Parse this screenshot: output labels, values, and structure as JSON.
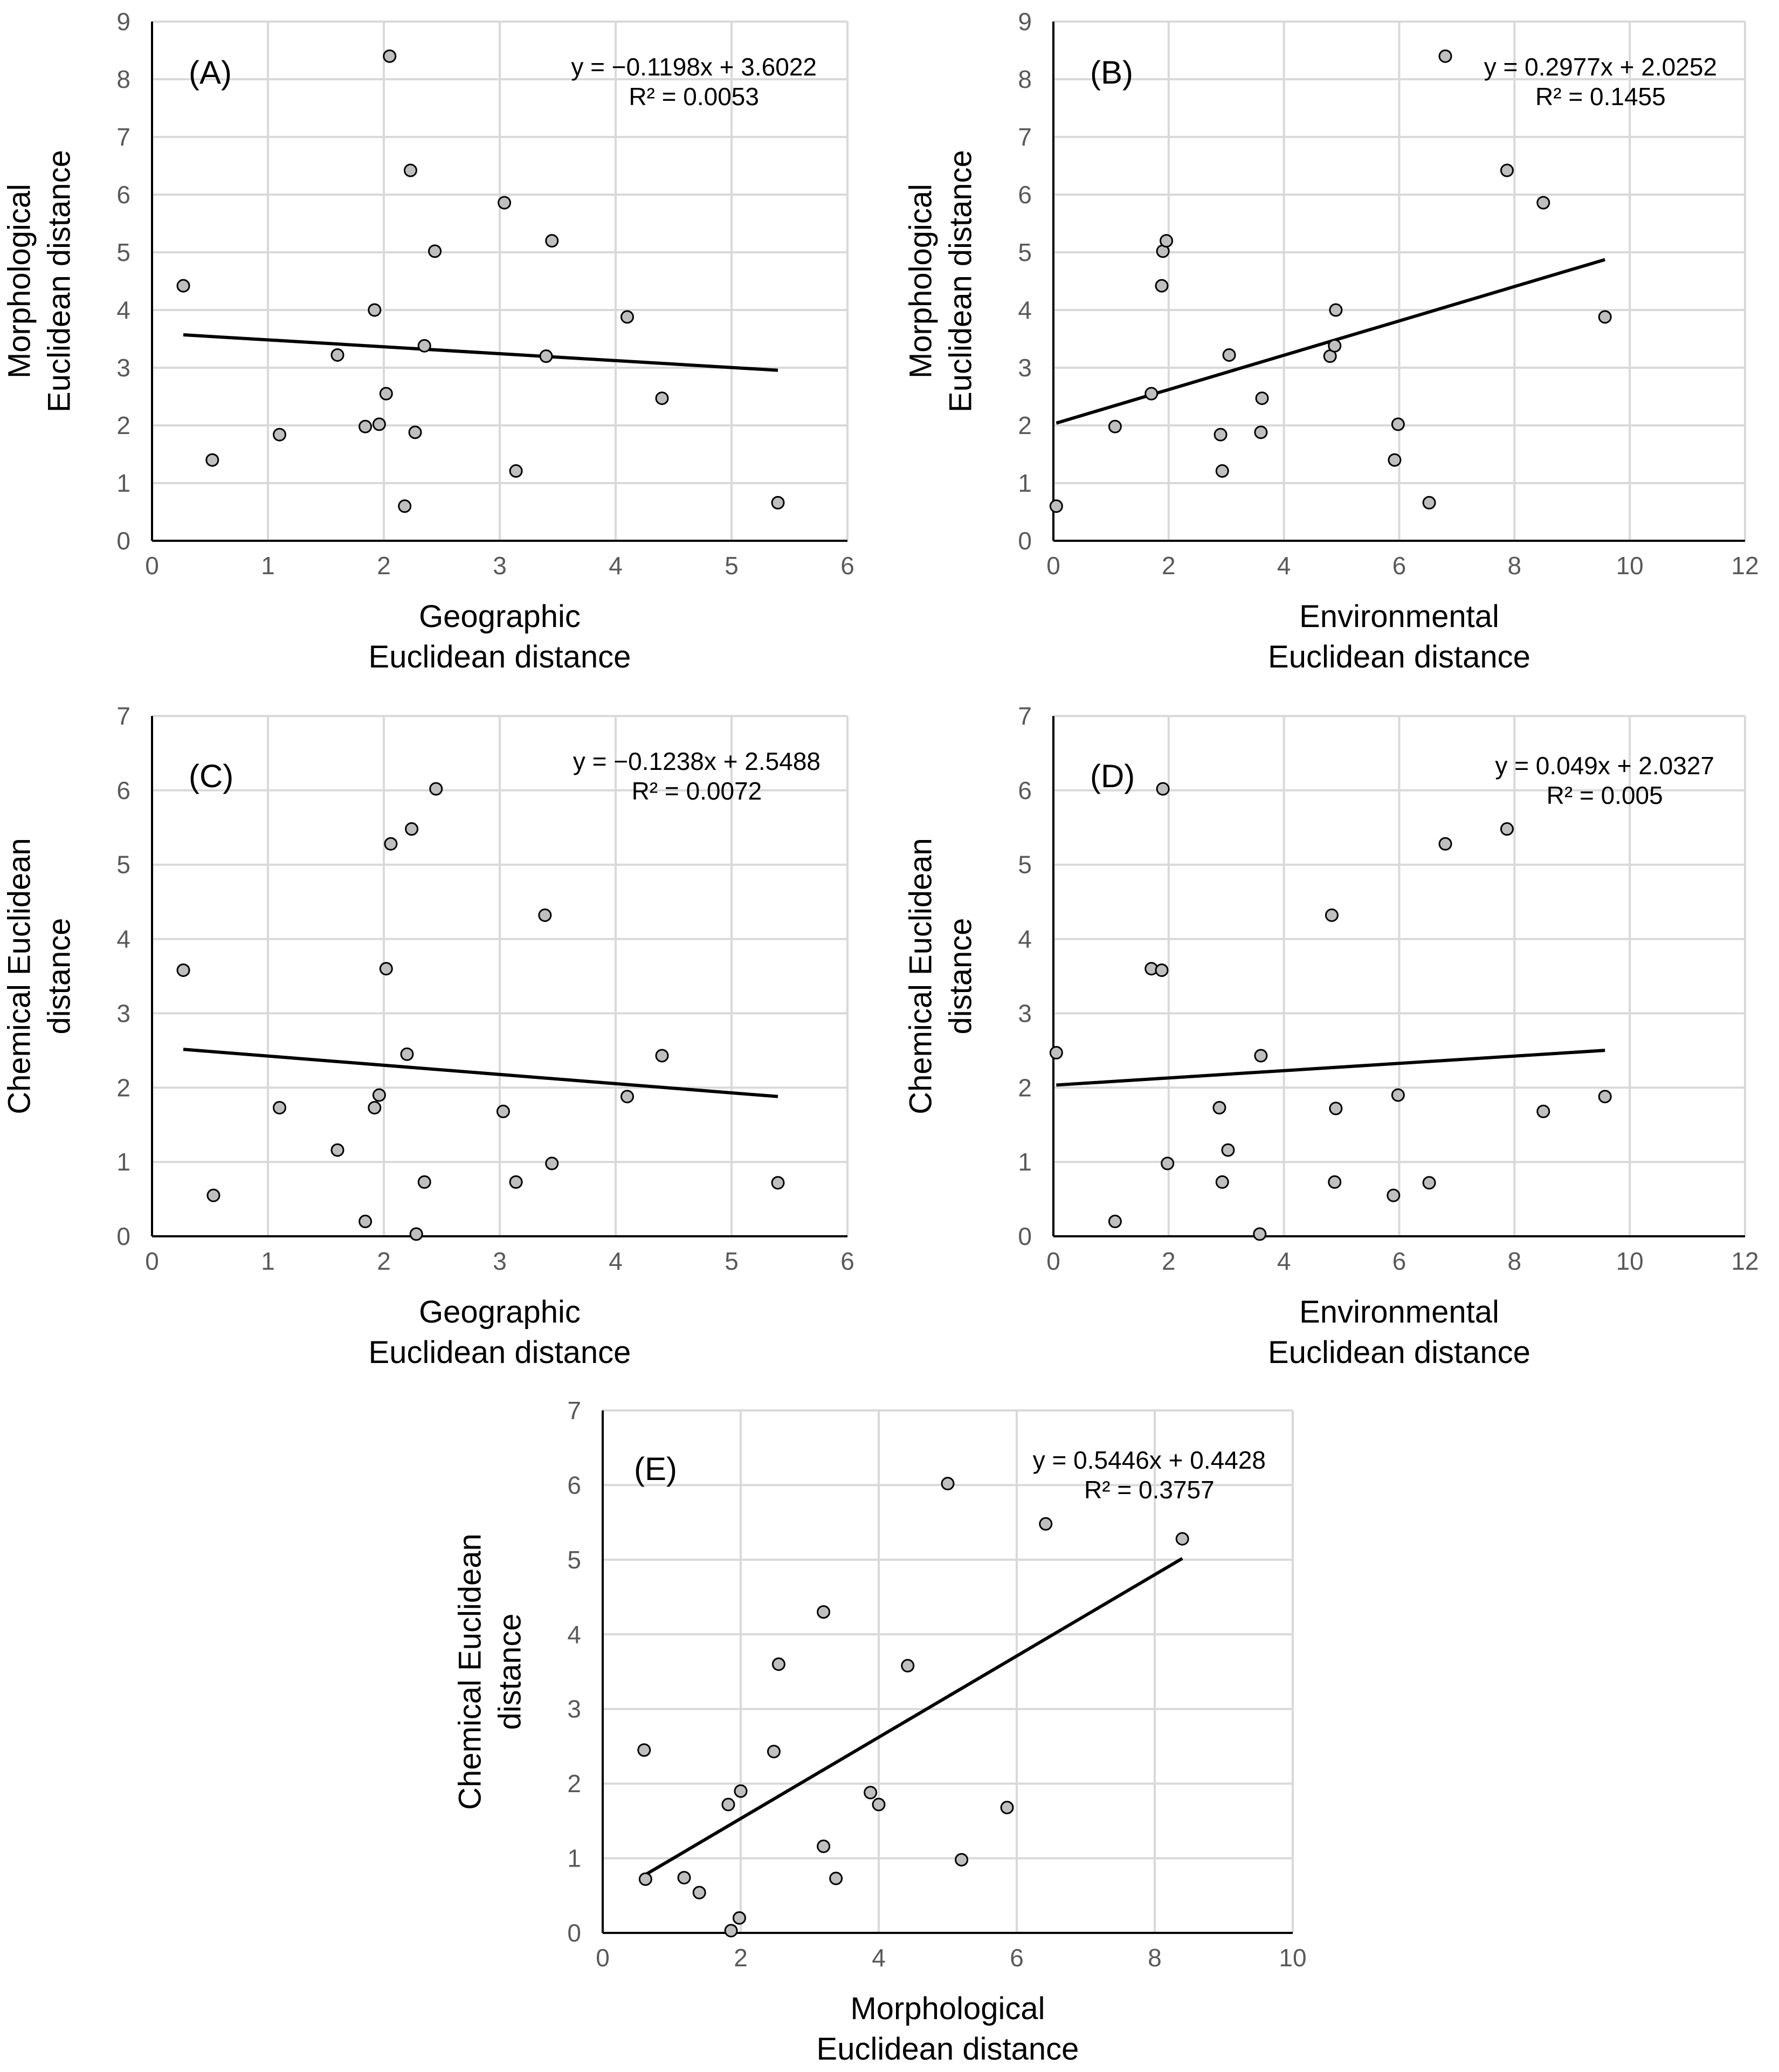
{
  "chart_data": [
    {
      "type": "scatter",
      "id": "A",
      "panel_label": "(A)",
      "xlabel": [
        "Geographic",
        "Euclidean distance"
      ],
      "ylabel": [
        "Morphological",
        "Euclidean distance"
      ],
      "xlim": [
        0,
        6
      ],
      "xstep": 1,
      "ylim": [
        0,
        9
      ],
      "ystep": 1,
      "equation": "y = −0.1198x + 3.6022",
      "r2": "R² = 0.0053",
      "trend": {
        "slope": -0.1198,
        "intercept": 3.6022
      },
      "points": [
        [
          0.27,
          4.42
        ],
        [
          0.52,
          1.4
        ],
        [
          1.1,
          1.84
        ],
        [
          1.6,
          3.22
        ],
        [
          1.84,
          1.98
        ],
        [
          1.92,
          4.0
        ],
        [
          1.96,
          2.02
        ],
        [
          2.02,
          2.55
        ],
        [
          2.05,
          8.4
        ],
        [
          2.18,
          0.6
        ],
        [
          2.23,
          6.42
        ],
        [
          2.27,
          1.88
        ],
        [
          2.35,
          3.38
        ],
        [
          2.44,
          5.02
        ],
        [
          3.04,
          5.86
        ],
        [
          3.14,
          1.21
        ],
        [
          3.4,
          3.2
        ],
        [
          3.45,
          5.2
        ],
        [
          4.1,
          3.88
        ],
        [
          4.4,
          2.47
        ],
        [
          5.4,
          0.66
        ]
      ]
    },
    {
      "type": "scatter",
      "id": "B",
      "panel_label": "(B)",
      "xlabel": [
        "Environmental",
        "Euclidean distance"
      ],
      "ylabel": [
        "Morphological",
        "Euclidean distance"
      ],
      "xlim": [
        0,
        12
      ],
      "xstep": 2,
      "ylim": [
        0,
        9
      ],
      "ystep": 1,
      "equation": "y = 0.2977x + 2.0252",
      "r2": "R² = 0.1455",
      "trend": {
        "slope": 0.2977,
        "intercept": 2.0252
      },
      "points": [
        [
          0.05,
          0.6
        ],
        [
          1.07,
          1.98
        ],
        [
          1.7,
          2.55
        ],
        [
          1.88,
          4.42
        ],
        [
          1.9,
          5.02
        ],
        [
          1.96,
          5.2
        ],
        [
          2.9,
          1.84
        ],
        [
          2.93,
          1.21
        ],
        [
          3.05,
          3.22
        ],
        [
          3.6,
          1.88
        ],
        [
          3.62,
          2.47
        ],
        [
          4.8,
          3.2
        ],
        [
          4.88,
          3.38
        ],
        [
          4.9,
          4.0
        ],
        [
          5.92,
          1.4
        ],
        [
          5.98,
          2.02
        ],
        [
          6.52,
          0.66
        ],
        [
          6.8,
          8.4
        ],
        [
          7.87,
          6.42
        ],
        [
          8.5,
          5.86
        ],
        [
          9.57,
          3.88
        ]
      ]
    },
    {
      "type": "scatter",
      "id": "C",
      "panel_label": "(C)",
      "xlabel": [
        "Geographic",
        "Euclidean distance"
      ],
      "ylabel": [
        "Chemical Euclidean",
        "distance"
      ],
      "xlim": [
        0,
        6
      ],
      "xstep": 1,
      "ylim": [
        0,
        7
      ],
      "ystep": 1,
      "equation": "y = −0.1238x + 2.5488",
      "r2": "R² = 0.0072",
      "trend": {
        "slope": -0.1238,
        "intercept": 2.5488
      },
      "points": [
        [
          0.27,
          3.58
        ],
        [
          0.53,
          0.55
        ],
        [
          1.1,
          1.73
        ],
        [
          1.6,
          1.16
        ],
        [
          1.84,
          0.2
        ],
        [
          1.92,
          1.73
        ],
        [
          1.96,
          1.9
        ],
        [
          2.02,
          3.6
        ],
        [
          2.06,
          5.28
        ],
        [
          2.2,
          2.45
        ],
        [
          2.24,
          5.48
        ],
        [
          2.28,
          0.03
        ],
        [
          2.35,
          0.73
        ],
        [
          2.45,
          6.02
        ],
        [
          3.03,
          1.68
        ],
        [
          3.14,
          0.73
        ],
        [
          3.39,
          4.32
        ],
        [
          3.45,
          0.98
        ],
        [
          4.1,
          1.88
        ],
        [
          4.4,
          2.43
        ],
        [
          5.4,
          0.72
        ]
      ]
    },
    {
      "type": "scatter",
      "id": "D",
      "panel_label": "(D)",
      "xlabel": [
        "Environmental",
        "Euclidean distance"
      ],
      "ylabel": [
        "Chemical Euclidean",
        "distance"
      ],
      "xlim": [
        0,
        12
      ],
      "xstep": 2,
      "ylim": [
        0,
        7
      ],
      "ystep": 1,
      "equation": "y = 0.049x + 2.0327",
      "r2": "R² = 0.005",
      "trend": {
        "slope": 0.049,
        "intercept": 2.0327
      },
      "points": [
        [
          0.05,
          2.47
        ],
        [
          1.07,
          0.2
        ],
        [
          1.7,
          3.6
        ],
        [
          1.88,
          3.58
        ],
        [
          1.9,
          6.02
        ],
        [
          1.98,
          0.98
        ],
        [
          2.88,
          1.73
        ],
        [
          2.93,
          0.73
        ],
        [
          3.03,
          1.16
        ],
        [
          3.58,
          0.03
        ],
        [
          3.6,
          2.43
        ],
        [
          4.83,
          4.32
        ],
        [
          4.88,
          0.73
        ],
        [
          4.9,
          1.72
        ],
        [
          5.9,
          0.55
        ],
        [
          5.98,
          1.9
        ],
        [
          6.52,
          0.72
        ],
        [
          6.8,
          5.28
        ],
        [
          7.87,
          5.48
        ],
        [
          8.5,
          1.68
        ],
        [
          9.57,
          1.88
        ]
      ]
    },
    {
      "type": "scatter",
      "id": "E",
      "panel_label": "(E)",
      "xlabel": [
        "Morphological",
        "Euclidean distance"
      ],
      "ylabel": [
        "Chemical Euclidean",
        "distance"
      ],
      "xlim": [
        0,
        10
      ],
      "xstep": 2,
      "ylim": [
        0,
        7
      ],
      "ystep": 1,
      "equation": "y = 0.5446x + 0.4428",
      "r2": "R² = 0.3757",
      "trend": {
        "slope": 0.5446,
        "intercept": 0.4428
      },
      "points": [
        [
          0.6,
          2.45
        ],
        [
          0.62,
          0.72
        ],
        [
          1.18,
          0.74
        ],
        [
          1.4,
          0.54
        ],
        [
          1.82,
          1.72
        ],
        [
          1.86,
          0.03
        ],
        [
          1.98,
          0.2
        ],
        [
          2.0,
          1.9
        ],
        [
          2.48,
          2.43
        ],
        [
          2.55,
          3.6
        ],
        [
          3.2,
          1.16
        ],
        [
          3.2,
          4.3
        ],
        [
          3.38,
          0.73
        ],
        [
          3.88,
          1.88
        ],
        [
          4.0,
          1.72
        ],
        [
          4.42,
          3.58
        ],
        [
          5.0,
          6.02
        ],
        [
          5.2,
          0.98
        ],
        [
          5.86,
          1.68
        ],
        [
          6.42,
          5.48
        ],
        [
          8.4,
          5.28
        ]
      ]
    }
  ]
}
